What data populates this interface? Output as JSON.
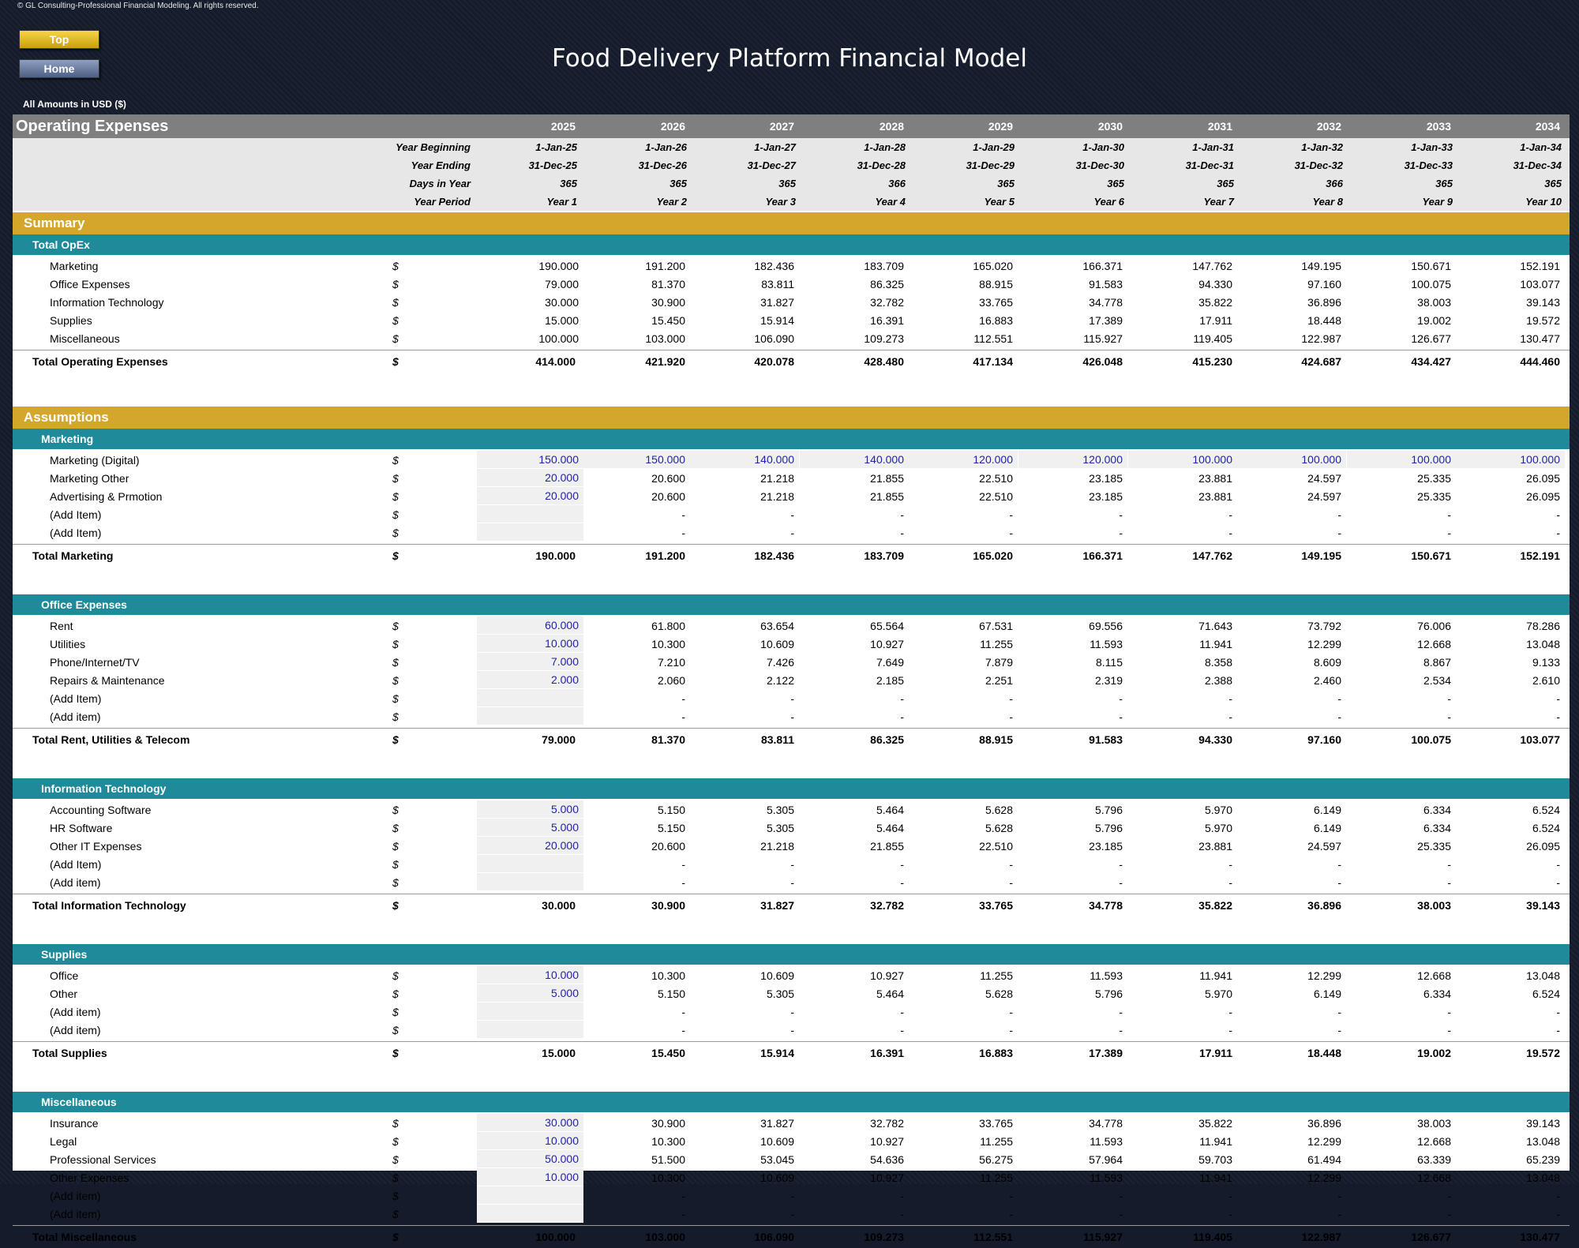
{
  "copyright": "© GL Consulting-Professional Financial Modeling. All rights reserved.",
  "buttons": {
    "top": "Top",
    "home": "Home"
  },
  "title": "Food Delivery Platform Financial Model",
  "amounts_label": "All Amounts in  USD ($)",
  "header": {
    "sheet_title": "Operating Expenses",
    "years": [
      "2025",
      "2026",
      "2027",
      "2028",
      "2029",
      "2030",
      "2031",
      "2032",
      "2033",
      "2034"
    ],
    "meta_rows": [
      {
        "label": "Year Beginning",
        "values": [
          "1-Jan-25",
          "1-Jan-26",
          "1-Jan-27",
          "1-Jan-28",
          "1-Jan-29",
          "1-Jan-30",
          "1-Jan-31",
          "1-Jan-32",
          "1-Jan-33",
          "1-Jan-34"
        ]
      },
      {
        "label": "Year Ending",
        "values": [
          "31-Dec-25",
          "31-Dec-26",
          "31-Dec-27",
          "31-Dec-28",
          "31-Dec-29",
          "31-Dec-30",
          "31-Dec-31",
          "31-Dec-32",
          "31-Dec-33",
          "31-Dec-34"
        ]
      },
      {
        "label": "Days in Year",
        "values": [
          "365",
          "365",
          "365",
          "366",
          "365",
          "365",
          "365",
          "366",
          "365",
          "365"
        ]
      },
      {
        "label": "Year Period",
        "values": [
          "Year 1",
          "Year 2",
          "Year 3",
          "Year 4",
          "Year 5",
          "Year 6",
          "Year 7",
          "Year 8",
          "Year 9",
          "Year 10"
        ]
      }
    ]
  },
  "currency": "$",
  "sections": [
    {
      "kind": "band",
      "label": "Summary"
    },
    {
      "kind": "sub",
      "label": "Total OpEx",
      "indent": "low"
    },
    {
      "kind": "data",
      "label": "Marketing",
      "values": [
        "190.000",
        "191.200",
        "182.436",
        "183.709",
        "165.020",
        "166.371",
        "147.762",
        "149.195",
        "150.671",
        "152.191"
      ]
    },
    {
      "kind": "data",
      "label": "Office Expenses",
      "values": [
        "79.000",
        "81.370",
        "83.811",
        "86.325",
        "88.915",
        "91.583",
        "94.330",
        "97.160",
        "100.075",
        "103.077"
      ]
    },
    {
      "kind": "data",
      "label": "Information Technology",
      "values": [
        "30.000",
        "30.900",
        "31.827",
        "32.782",
        "33.765",
        "34.778",
        "35.822",
        "36.896",
        "38.003",
        "39.143"
      ]
    },
    {
      "kind": "data",
      "label": "Supplies",
      "values": [
        "15.000",
        "15.450",
        "15.914",
        "16.391",
        "16.883",
        "17.389",
        "17.911",
        "18.448",
        "19.002",
        "19.572"
      ]
    },
    {
      "kind": "data",
      "label": "Miscellaneous",
      "values": [
        "100.000",
        "103.000",
        "106.090",
        "109.273",
        "112.551",
        "115.927",
        "119.405",
        "122.987",
        "126.677",
        "130.477"
      ]
    },
    {
      "kind": "total",
      "label": "Total Operating Expenses",
      "values": [
        "414.000",
        "421.920",
        "420.078",
        "428.480",
        "417.134",
        "426.048",
        "415.230",
        "424.687",
        "434.427",
        "444.460"
      ]
    },
    {
      "kind": "gap",
      "size": "large"
    },
    {
      "kind": "band",
      "label": "Assumptions"
    },
    {
      "kind": "sub",
      "label": "Marketing",
      "indent": "high"
    },
    {
      "kind": "data",
      "label": "Marketing (Digital)",
      "input": "all",
      "values": [
        "150.000",
        "150.000",
        "140.000",
        "140.000",
        "120.000",
        "120.000",
        "100.000",
        "100.000",
        "100.000",
        "100.000"
      ]
    },
    {
      "kind": "data",
      "label": "Marketing Other",
      "input": "first",
      "values": [
        "20.000",
        "20.600",
        "21.218",
        "21.855",
        "22.510",
        "23.185",
        "23.881",
        "24.597",
        "25.335",
        "26.095"
      ]
    },
    {
      "kind": "data",
      "label": "Advertising & Prmotion",
      "input": "first",
      "values": [
        "20.000",
        "20.600",
        "21.218",
        "21.855",
        "22.510",
        "23.185",
        "23.881",
        "24.597",
        "25.335",
        "26.095"
      ]
    },
    {
      "kind": "data",
      "label": "(Add Item)",
      "input": "first",
      "values": [
        "",
        "-",
        "-",
        "-",
        "-",
        "-",
        "-",
        "-",
        "-",
        "-"
      ]
    },
    {
      "kind": "data",
      "label": "(Add Item)",
      "input": "first",
      "values": [
        "",
        "-",
        "-",
        "-",
        "-",
        "-",
        "-",
        "-",
        "-",
        "-"
      ]
    },
    {
      "kind": "total",
      "label": "Total Marketing",
      "values": [
        "190.000",
        "191.200",
        "182.436",
        "183.709",
        "165.020",
        "166.371",
        "147.762",
        "149.195",
        "150.671",
        "152.191"
      ]
    },
    {
      "kind": "gap",
      "size": "small"
    },
    {
      "kind": "sub",
      "label": "Office Expenses",
      "indent": "high"
    },
    {
      "kind": "data",
      "label": "Rent",
      "input": "first",
      "values": [
        "60.000",
        "61.800",
        "63.654",
        "65.564",
        "67.531",
        "69.556",
        "71.643",
        "73.792",
        "76.006",
        "78.286"
      ]
    },
    {
      "kind": "data",
      "label": "Utilities",
      "input": "first",
      "values": [
        "10.000",
        "10.300",
        "10.609",
        "10.927",
        "11.255",
        "11.593",
        "11.941",
        "12.299",
        "12.668",
        "13.048"
      ]
    },
    {
      "kind": "data",
      "label": "Phone/Internet/TV",
      "input": "first",
      "values": [
        "7.000",
        "7.210",
        "7.426",
        "7.649",
        "7.879",
        "8.115",
        "8.358",
        "8.609",
        "8.867",
        "9.133"
      ]
    },
    {
      "kind": "data",
      "label": "Repairs & Maintenance",
      "input": "first",
      "values": [
        "2.000",
        "2.060",
        "2.122",
        "2.185",
        "2.251",
        "2.319",
        "2.388",
        "2.460",
        "2.534",
        "2.610"
      ]
    },
    {
      "kind": "data",
      "label": "(Add Item)",
      "input": "first",
      "values": [
        "",
        "-",
        "-",
        "-",
        "-",
        "-",
        "-",
        "-",
        "-",
        "-"
      ]
    },
    {
      "kind": "data",
      "label": "(Add item)",
      "input": "first",
      "values": [
        "",
        "-",
        "-",
        "-",
        "-",
        "-",
        "-",
        "-",
        "-",
        "-"
      ]
    },
    {
      "kind": "total",
      "label": "Total Rent, Utilities & Telecom",
      "values": [
        "79.000",
        "81.370",
        "83.811",
        "86.325",
        "88.915",
        "91.583",
        "94.330",
        "97.160",
        "100.075",
        "103.077"
      ]
    },
    {
      "kind": "gap",
      "size": "small"
    },
    {
      "kind": "sub",
      "label": "Information Technology",
      "indent": "high"
    },
    {
      "kind": "data",
      "label": "Accounting Software",
      "input": "first",
      "values": [
        "5.000",
        "5.150",
        "5.305",
        "5.464",
        "5.628",
        "5.796",
        "5.970",
        "6.149",
        "6.334",
        "6.524"
      ]
    },
    {
      "kind": "data",
      "label": "HR Software",
      "input": "first",
      "values": [
        "5.000",
        "5.150",
        "5.305",
        "5.464",
        "5.628",
        "5.796",
        "5.970",
        "6.149",
        "6.334",
        "6.524"
      ]
    },
    {
      "kind": "data",
      "label": "Other IT Expenses",
      "input": "first",
      "values": [
        "20.000",
        "20.600",
        "21.218",
        "21.855",
        "22.510",
        "23.185",
        "23.881",
        "24.597",
        "25.335",
        "26.095"
      ]
    },
    {
      "kind": "data",
      "label": "(Add Item)",
      "input": "first",
      "values": [
        "",
        "-",
        "-",
        "-",
        "-",
        "-",
        "-",
        "-",
        "-",
        "-"
      ]
    },
    {
      "kind": "data",
      "label": "(Add item)",
      "input": "first",
      "values": [
        "",
        "-",
        "-",
        "-",
        "-",
        "-",
        "-",
        "-",
        "-",
        "-"
      ]
    },
    {
      "kind": "total",
      "label": "Total Information Technology",
      "values": [
        "30.000",
        "30.900",
        "31.827",
        "32.782",
        "33.765",
        "34.778",
        "35.822",
        "36.896",
        "38.003",
        "39.143"
      ]
    },
    {
      "kind": "gap",
      "size": "small"
    },
    {
      "kind": "sub",
      "label": "Supplies",
      "indent": "high"
    },
    {
      "kind": "data",
      "label": "Office",
      "input": "first",
      "values": [
        "10.000",
        "10.300",
        "10.609",
        "10.927",
        "11.255",
        "11.593",
        "11.941",
        "12.299",
        "12.668",
        "13.048"
      ]
    },
    {
      "kind": "data",
      "label": "Other",
      "input": "first",
      "values": [
        "5.000",
        "5.150",
        "5.305",
        "5.464",
        "5.628",
        "5.796",
        "5.970",
        "6.149",
        "6.334",
        "6.524"
      ]
    },
    {
      "kind": "data",
      "label": "(Add item)",
      "input": "first",
      "values": [
        "",
        "-",
        "-",
        "-",
        "-",
        "-",
        "-",
        "-",
        "-",
        "-"
      ]
    },
    {
      "kind": "data",
      "label": "(Add item)",
      "input": "first",
      "values": [
        "",
        "-",
        "-",
        "-",
        "-",
        "-",
        "-",
        "-",
        "-",
        "-"
      ]
    },
    {
      "kind": "total",
      "label": "Total Supplies",
      "values": [
        "15.000",
        "15.450",
        "15.914",
        "16.391",
        "16.883",
        "17.389",
        "17.911",
        "18.448",
        "19.002",
        "19.572"
      ]
    },
    {
      "kind": "gap",
      "size": "small"
    },
    {
      "kind": "sub",
      "label": "Miscellaneous",
      "indent": "high"
    },
    {
      "kind": "data",
      "label": "Insurance",
      "input": "first",
      "values": [
        "30.000",
        "30.900",
        "31.827",
        "32.782",
        "33.765",
        "34.778",
        "35.822",
        "36.896",
        "38.003",
        "39.143"
      ]
    },
    {
      "kind": "data",
      "label": "Legal",
      "input": "first",
      "values": [
        "10.000",
        "10.300",
        "10.609",
        "10.927",
        "11.255",
        "11.593",
        "11.941",
        "12.299",
        "12.668",
        "13.048"
      ]
    },
    {
      "kind": "data",
      "label": "Professional Services",
      "input": "first",
      "values": [
        "50.000",
        "51.500",
        "53.045",
        "54.636",
        "56.275",
        "57.964",
        "59.703",
        "61.494",
        "63.339",
        "65.239"
      ]
    },
    {
      "kind": "data",
      "label": "Other Expenses",
      "input": "first",
      "values": [
        "10.000",
        "10.300",
        "10.609",
        "10.927",
        "11.255",
        "11.593",
        "11.941",
        "12.299",
        "12.668",
        "13.048"
      ]
    },
    {
      "kind": "data",
      "label": "(Add item)",
      "input": "first",
      "values": [
        "",
        "-",
        "-",
        "-",
        "-",
        "-",
        "-",
        "-",
        "-",
        "-"
      ]
    },
    {
      "kind": "data",
      "label": "(Add item)",
      "input": "first",
      "values": [
        "",
        "-",
        "-",
        "-",
        "-",
        "-",
        "-",
        "-",
        "-",
        "-"
      ]
    },
    {
      "kind": "total",
      "label": "Total Miscellaneous",
      "values": [
        "100.000",
        "103.000",
        "106.090",
        "109.273",
        "112.551",
        "115.927",
        "119.405",
        "122.987",
        "126.677",
        "130.477"
      ]
    }
  ]
}
